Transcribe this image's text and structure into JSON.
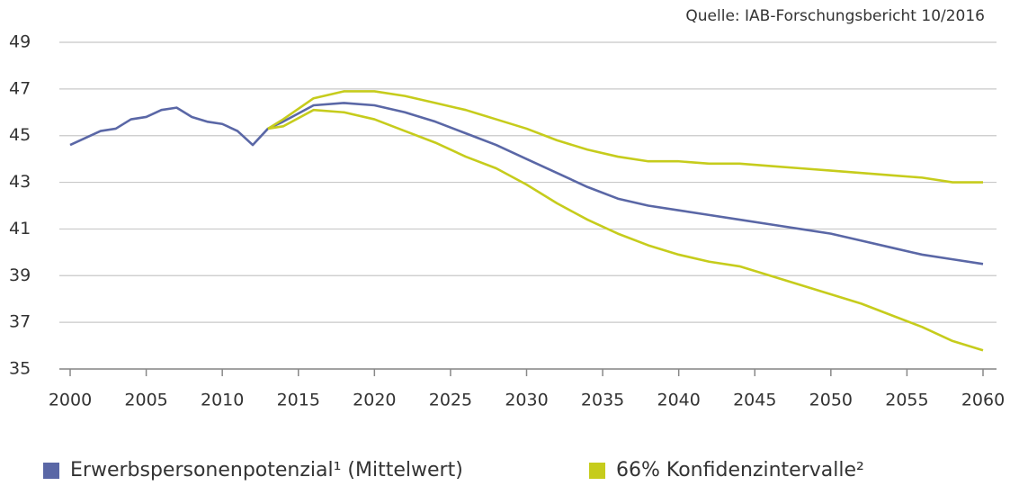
{
  "chart_data": {
    "type": "line",
    "source": "Quelle: IAB-Forschungsbericht 10/2016",
    "x": [
      2000,
      2001,
      2002,
      2003,
      2004,
      2005,
      2006,
      2007,
      2008,
      2009,
      2010,
      2011,
      2012,
      2013,
      2014,
      2016,
      2018,
      2020,
      2022,
      2024,
      2026,
      2028,
      2030,
      2032,
      2034,
      2036,
      2038,
      2040,
      2042,
      2044,
      2046,
      2048,
      2050,
      2052,
      2054,
      2056,
      2058,
      2060
    ],
    "series": [
      {
        "name": "Erwerbspersonenpotenzial¹ (Mittelwert)",
        "color": "#5a67a6",
        "values": [
          44.6,
          44.9,
          45.2,
          45.3,
          45.7,
          45.8,
          46.1,
          46.2,
          45.8,
          45.6,
          45.5,
          45.2,
          44.6,
          45.3,
          45.6,
          46.3,
          46.4,
          46.3,
          46.0,
          45.6,
          45.1,
          44.6,
          44.0,
          43.4,
          42.8,
          42.3,
          42.0,
          41.8,
          41.6,
          41.4,
          41.2,
          41.0,
          40.8,
          40.5,
          40.2,
          39.9,
          39.7,
          39.5
        ]
      },
      {
        "name": "66% Konfidenzintervalle²",
        "color": "#c6cc1c",
        "values": [
          null,
          null,
          null,
          null,
          null,
          null,
          null,
          null,
          null,
          null,
          null,
          null,
          null,
          45.3,
          45.7,
          46.6,
          46.9,
          46.9,
          46.7,
          46.4,
          46.1,
          45.7,
          45.3,
          44.8,
          44.4,
          44.1,
          43.9,
          43.9,
          43.8,
          43.8,
          43.7,
          43.6,
          43.5,
          43.4,
          43.3,
          43.2,
          43.0,
          43.0
        ],
        "lower": [
          null,
          null,
          null,
          null,
          null,
          null,
          null,
          null,
          null,
          null,
          null,
          null,
          null,
          45.3,
          45.4,
          46.1,
          46.0,
          45.7,
          45.2,
          44.7,
          44.1,
          43.6,
          42.9,
          42.1,
          41.4,
          40.8,
          40.3,
          39.9,
          39.6,
          39.4,
          39.0,
          38.6,
          38.2,
          37.8,
          37.3,
          36.8,
          36.2,
          35.8
        ]
      }
    ],
    "xlim": [
      2000,
      2060
    ],
    "xticks": [
      2000,
      2005,
      2010,
      2015,
      2020,
      2025,
      2030,
      2035,
      2040,
      2045,
      2050,
      2055,
      2060
    ],
    "ylim": [
      35,
      49
    ],
    "yticks": [
      35,
      37,
      39,
      41,
      43,
      45,
      47,
      49
    ],
    "grid": true,
    "legend": "bottom"
  }
}
